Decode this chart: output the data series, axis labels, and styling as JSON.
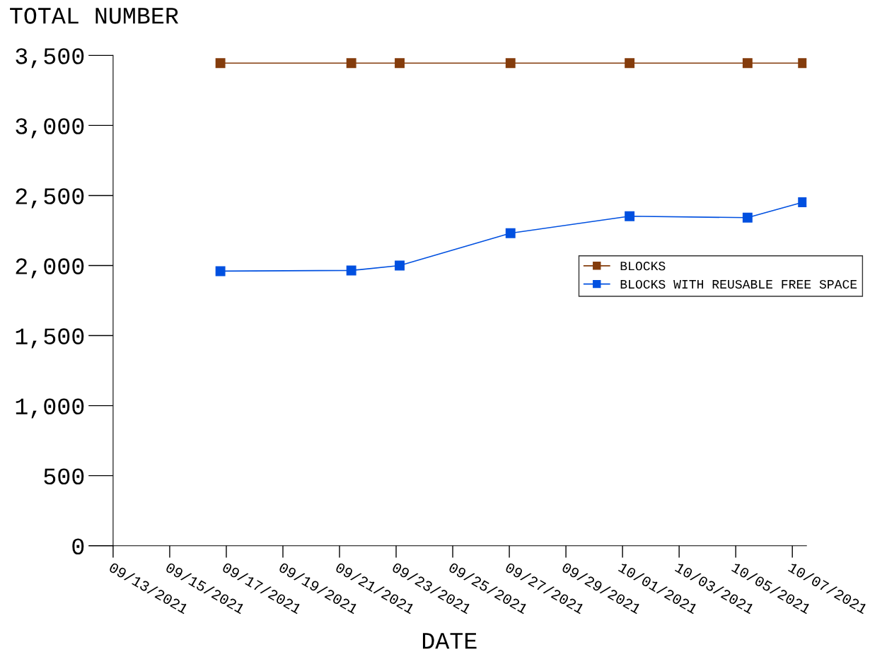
{
  "chart_data": {
    "type": "line",
    "ylabel": "TOTAL NUMBER",
    "xlabel": "DATE",
    "x": [
      "2021-09-16T19:00",
      "2021-09-21T10:00",
      "2021-09-23T03:00",
      "2021-09-27T01:00",
      "2021-10-01T06:00",
      "2021-10-05T10:00",
      "2021-10-07T09:00"
    ],
    "series": [
      {
        "name": "BLOCKS",
        "color": "#843c0c",
        "values": [
          3445,
          3445,
          3445,
          3445,
          3445,
          3445,
          3445
        ]
      },
      {
        "name": "BLOCKS WITH REUSABLE FREE SPACE",
        "color": "#0050e0",
        "values": [
          1960,
          1965,
          2000,
          2231,
          2352,
          2342,
          2452
        ]
      }
    ],
    "xlim": [
      "2021-09-13",
      "2021-10-07T12:00"
    ],
    "xticks": [
      {
        "value": "2021-09-13",
        "label": "09/13/2021"
      },
      {
        "value": "2021-09-15",
        "label": "09/15/2021"
      },
      {
        "value": "2021-09-17",
        "label": "09/17/2021"
      },
      {
        "value": "2021-09-19",
        "label": "09/19/2021"
      },
      {
        "value": "2021-09-21",
        "label": "09/21/2021"
      },
      {
        "value": "2021-09-23",
        "label": "09/23/2021"
      },
      {
        "value": "2021-09-25",
        "label": "09/25/2021"
      },
      {
        "value": "2021-09-27",
        "label": "09/27/2021"
      },
      {
        "value": "2021-09-29",
        "label": "09/29/2021"
      },
      {
        "value": "2021-10-01",
        "label": "10/01/2021"
      },
      {
        "value": "2021-10-03",
        "label": "10/03/2021"
      },
      {
        "value": "2021-10-05",
        "label": "10/05/2021"
      },
      {
        "value": "2021-10-07",
        "label": "10/07/2021"
      }
    ],
    "ylim": [
      0,
      3500
    ],
    "yticks": [
      0,
      {
        "value": 500,
        "label": "500"
      },
      {
        "value": 1000,
        "label": "1,000"
      },
      {
        "value": 1500,
        "label": "1,500"
      },
      {
        "value": 2000,
        "label": "2,000"
      },
      {
        "value": 2500,
        "label": "2,500"
      },
      {
        "value": 3000,
        "label": "3,000"
      },
      {
        "value": 3500,
        "label": "3,500"
      }
    ],
    "grid": false,
    "legend": "center right",
    "marker": "square",
    "line_style": "solid"
  }
}
